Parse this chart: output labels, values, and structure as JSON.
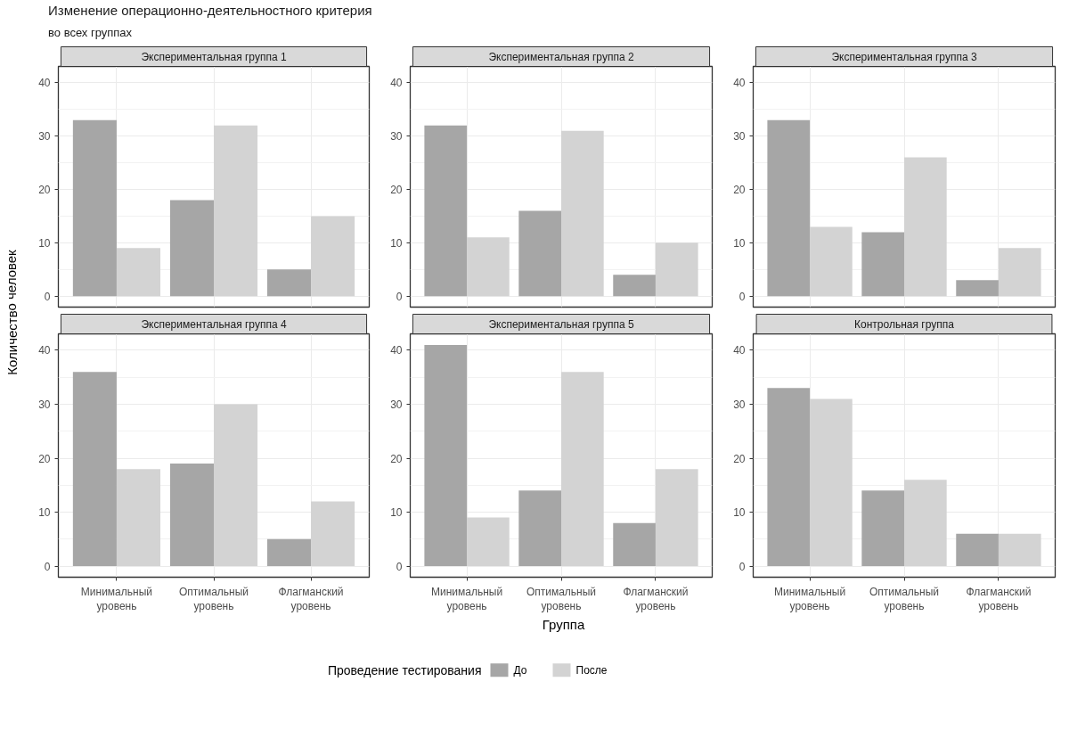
{
  "chart_data": [
    {
      "type": "bar",
      "title": "Экспериментальная группа 1",
      "annotations": [
        "Изменение операционно-деятельностного критерия",
        "во всех группах"
      ],
      "ylabel": "Количество человек",
      "legend_title": "Проведение тестирования",
      "legend": "bottom",
      "categories": [
        null,
        null,
        null
      ],
      "series": [
        {
          "name": "До",
          "color": "#a6a6a6",
          "values": [
            33,
            18,
            5
          ]
        },
        {
          "name": "После",
          "color": "#d3d3d3",
          "values": [
            9,
            32,
            15
          ]
        }
      ],
      "ylim": [
        -2.05,
        43.05
      ],
      "yticks": [
        0,
        10,
        20,
        30,
        40
      ],
      "grid": true,
      "tick_labels": "y"
    },
    {
      "type": "bar",
      "title": "Экспериментальная группа 2",
      "categories": [
        null,
        null,
        null
      ],
      "series": [
        {
          "color": "#a6a6a6",
          "values": [
            32,
            16,
            4
          ]
        },
        {
          "color": "#d3d3d3",
          "values": [
            11,
            31,
            10
          ]
        }
      ],
      "ylim": [
        -2.05,
        43.05
      ],
      "yticks": [
        0,
        10,
        20,
        30,
        40
      ],
      "grid": true,
      "tick_labels": "y"
    },
    {
      "type": "bar",
      "title": "Экспериментальная группа 3",
      "categories": [
        null,
        null,
        null
      ],
      "series": [
        {
          "color": "#a6a6a6",
          "values": [
            33,
            12,
            3
          ]
        },
        {
          "color": "#d3d3d3",
          "values": [
            13,
            26,
            9
          ]
        }
      ],
      "ylim": [
        -2.05,
        43.05
      ],
      "yticks": [
        0,
        10,
        20,
        30,
        40
      ],
      "grid": true,
      "tick_labels": "y"
    },
    {
      "type": "bar",
      "title": "Экспериментальная группа 4",
      "categories": [
        "Минимальный уровень",
        "Оптимальный уровень",
        "Флагманский уровень"
      ],
      "series": [
        {
          "color": "#a6a6a6",
          "values": [
            36,
            19,
            5
          ]
        },
        {
          "color": "#d3d3d3",
          "values": [
            18,
            30,
            12
          ]
        }
      ],
      "ylim": [
        -2.05,
        43.05
      ],
      "yticks": [
        0,
        10,
        20,
        30,
        40
      ],
      "grid": true
    },
    {
      "type": "bar",
      "title": "Экспериментальная группа 5",
      "xlabel": "Группа",
      "categories": [
        "Минимальный уровень",
        "Оптимальный уровень",
        "Флагманский уровень"
      ],
      "series": [
        {
          "color": "#a6a6a6",
          "values": [
            41,
            14,
            8
          ]
        },
        {
          "color": "#d3d3d3",
          "values": [
            9,
            36,
            18
          ]
        }
      ],
      "ylim": [
        -2.05,
        43.05
      ],
      "yticks": [
        0,
        10,
        20,
        30,
        40
      ],
      "grid": true
    },
    {
      "type": "bar",
      "title": "Контрольная группа",
      "categories": [
        "Минимальный уровень",
        "Оптимальный уровень",
        "Флагманский уровень"
      ],
      "series": [
        {
          "color": "#a6a6a6",
          "values": [
            33,
            14,
            6
          ]
        },
        {
          "color": "#d3d3d3",
          "values": [
            31,
            16,
            6
          ]
        }
      ],
      "ylim": [
        -2.05,
        43.05
      ],
      "yticks": [
        0,
        10,
        20,
        30,
        40
      ],
      "grid": true
    }
  ]
}
